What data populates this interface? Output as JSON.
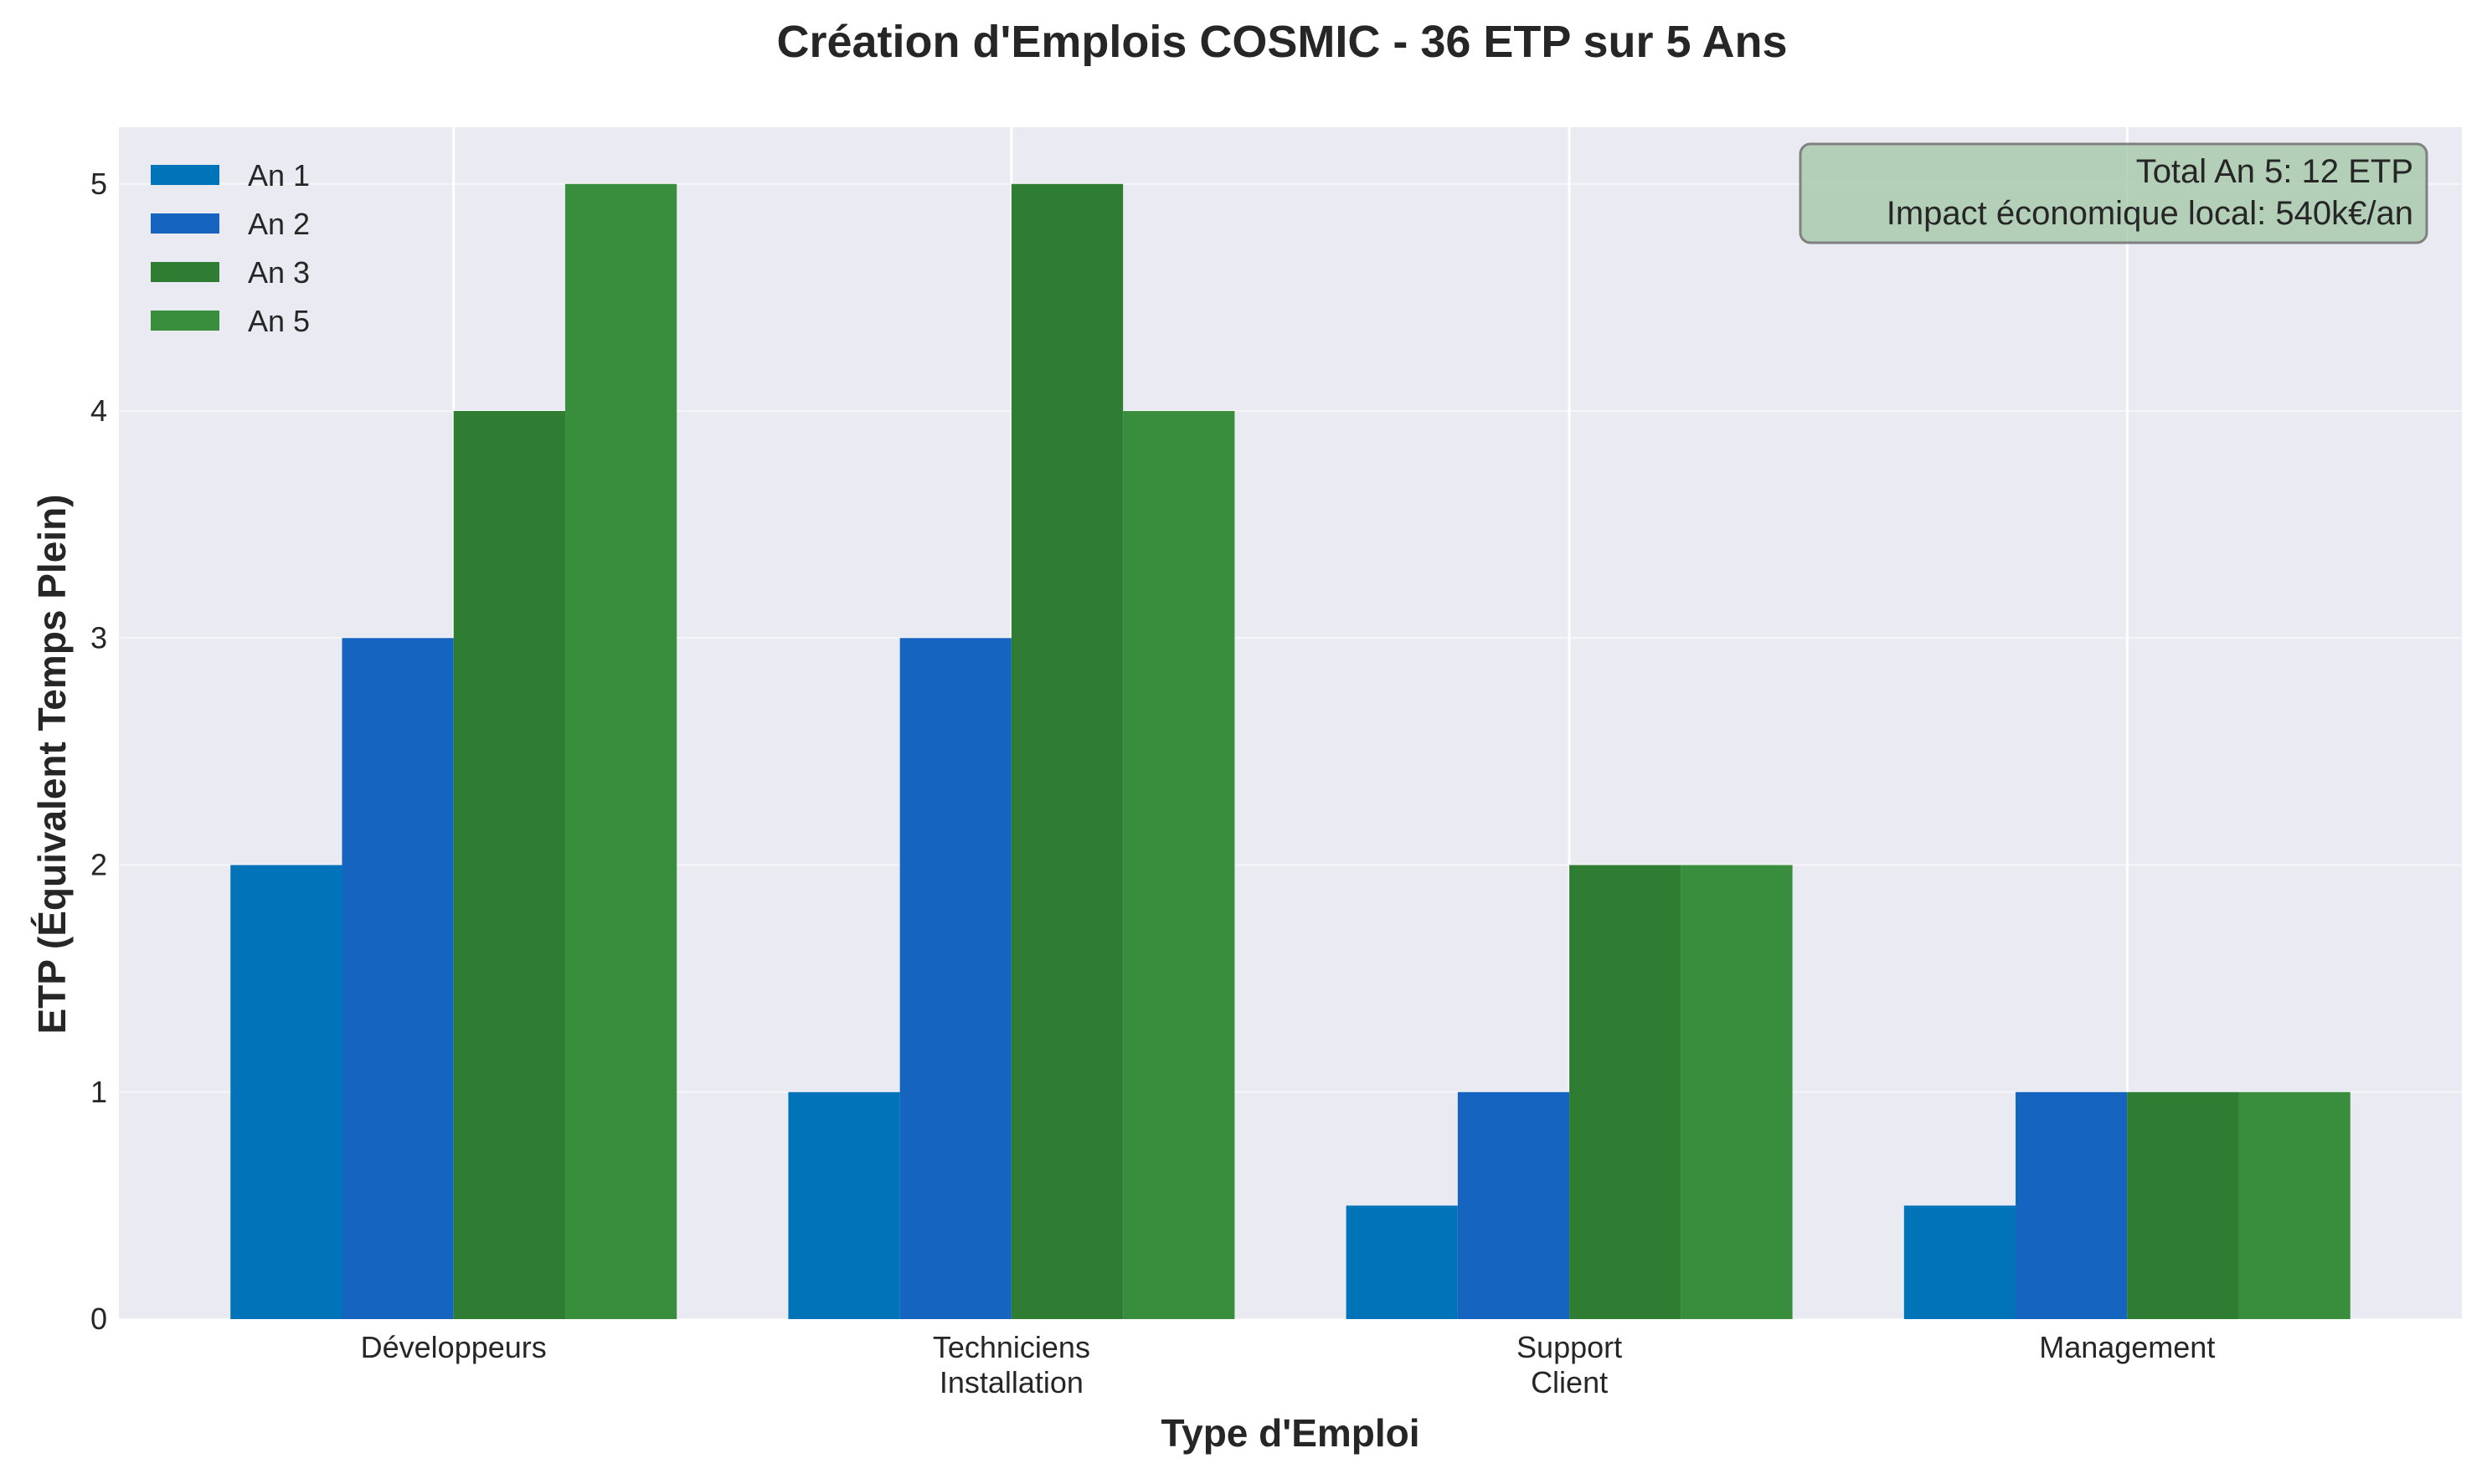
{
  "chart_data": {
    "type": "bar",
    "title": "Création d'Emplois COSMIC - 36 ETP sur 5 Ans",
    "xlabel": "Type d'Emploi",
    "ylabel": "ETP (Équivalent Temps Plein)",
    "categories": [
      [
        "Développeurs"
      ],
      [
        "Techniciens",
        "Installation"
      ],
      [
        "Support",
        "Client"
      ],
      [
        "Management"
      ]
    ],
    "series": [
      {
        "name": "An 1",
        "color": "#0173B8",
        "values": [
          2,
          1,
          0.5,
          0.5
        ]
      },
      {
        "name": "An 2",
        "color": "#1565C0",
        "values": [
          3,
          3,
          1,
          1
        ]
      },
      {
        "name": "An 3",
        "color": "#2E7D32",
        "values": [
          4,
          5,
          2,
          1
        ]
      },
      {
        "name": "An 5",
        "color": "#388E3C",
        "values": [
          5,
          4,
          2,
          1
        ]
      }
    ],
    "ylim": [
      0,
      5.25
    ],
    "yticks": [
      0,
      1,
      2,
      3,
      4,
      5
    ],
    "grid": true,
    "legend_position": "upper-left",
    "annotation": {
      "lines": [
        "Total An 5: 12 ETP",
        "Impact économique local: 540k€/an"
      ],
      "position": "top-right",
      "background": "#a5c8a8"
    },
    "plot_background": "#eaeaf2"
  }
}
